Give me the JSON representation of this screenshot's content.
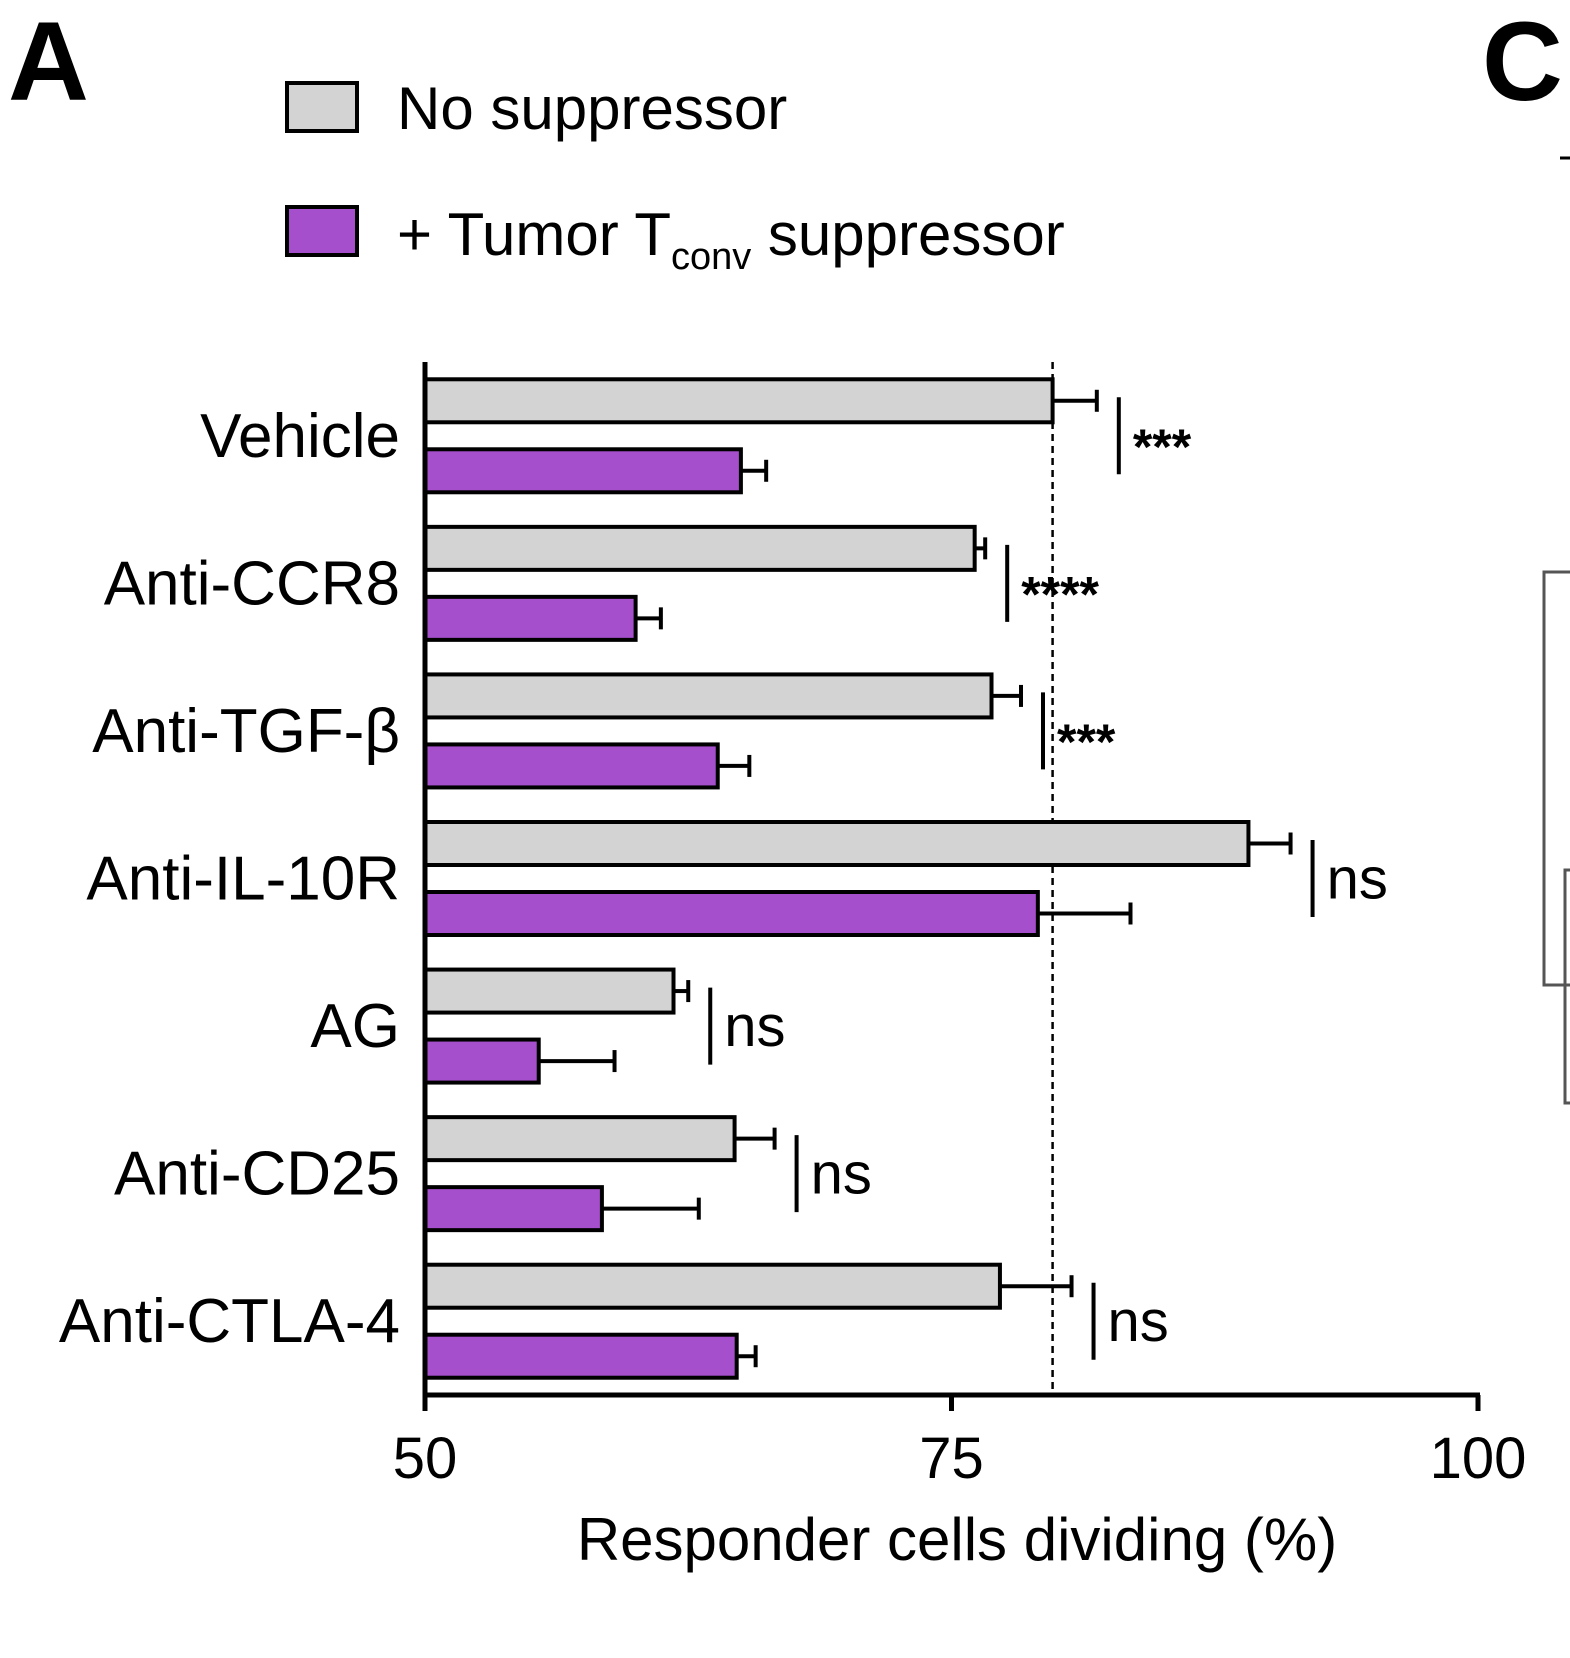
{
  "panel_labels": [
    "A",
    "C"
  ],
  "colors": {
    "no_suppressor": "#d3d3d3",
    "tumor_suppressor": "#a64fcc",
    "outline": "#000000"
  },
  "chart_data": {
    "type": "bar",
    "orientation": "horizontal",
    "categories": [
      "Vehicle",
      "Anti-CCR8",
      "Anti-TGF-β",
      "Anti-IL-10R",
      "AG",
      "Anti-CD25",
      "Anti-CTLA-4"
    ],
    "series": [
      {
        "name": "No suppressor",
        "values": [
          79.8,
          76.1,
          76.9,
          89.1,
          61.8,
          64.7,
          77.3
        ],
        "errors": [
          2.1,
          0.5,
          1.4,
          2.0,
          0.7,
          1.9,
          3.4
        ]
      },
      {
        "name_parts": [
          "+ Tumor T",
          "conv",
          " suppressor"
        ],
        "values": [
          65.0,
          60.0,
          63.9,
          79.1,
          55.4,
          58.4,
          64.8
        ],
        "errors": [
          1.2,
          1.2,
          1.5,
          4.4,
          3.6,
          4.6,
          0.9
        ]
      }
    ],
    "significance": [
      "***",
      "****",
      "***",
      "ns",
      "ns",
      "ns",
      "ns"
    ],
    "reference_line": 79.8,
    "xlabel": "Responder cells dividing (%)",
    "xlim": [
      50,
      100
    ],
    "xticks": [
      50,
      75,
      100
    ],
    "legend_position": "top"
  }
}
